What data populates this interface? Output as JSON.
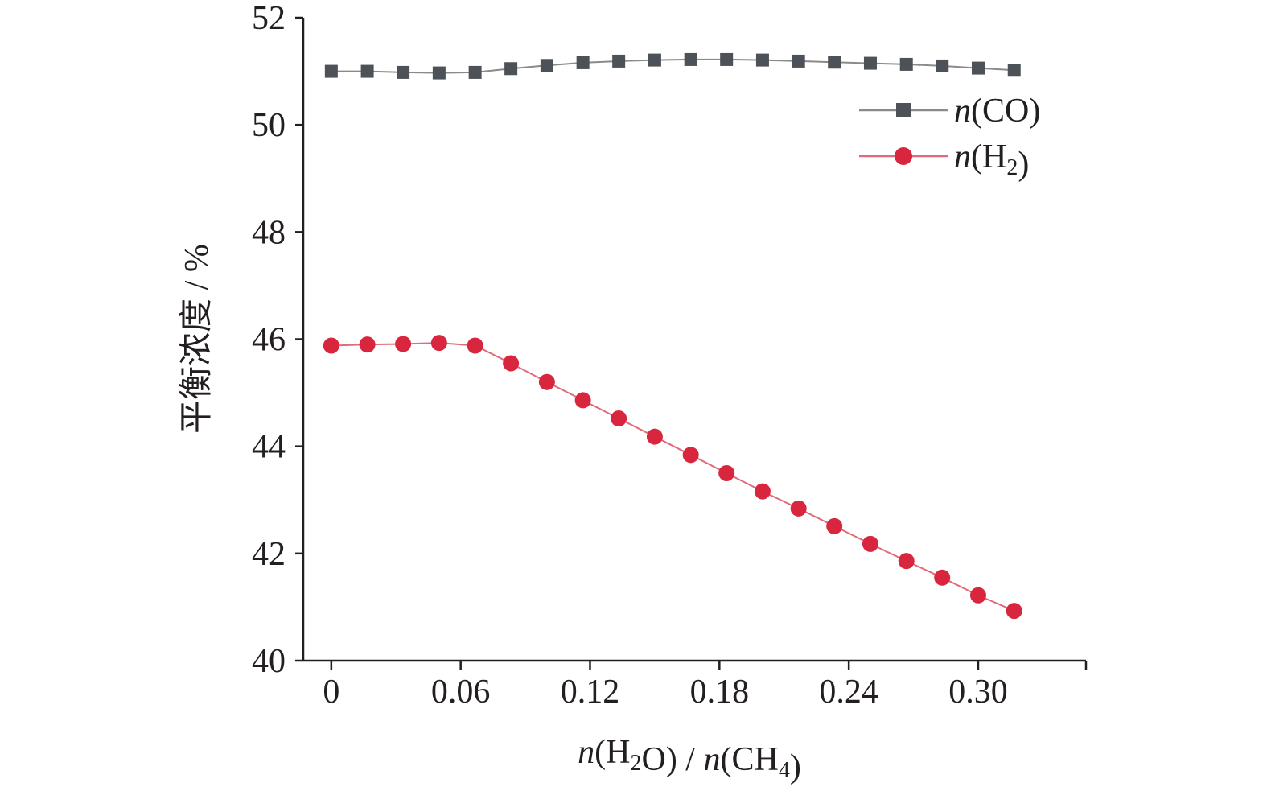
{
  "chart_data": {
    "type": "line",
    "title": "",
    "xlabel": "n(H2O) / n(CH4)",
    "ylabel": "平衡浓度 / %",
    "xlim": [
      -0.013,
      0.35
    ],
    "ylim": [
      40,
      52
    ],
    "x_ticks": [
      0,
      0.06,
      0.12,
      0.18,
      0.24,
      0.3
    ],
    "x_tick_labels": [
      "0",
      "0.06",
      "0.12",
      "0.18",
      "0.24",
      "0.30"
    ],
    "y_ticks": [
      40,
      42,
      44,
      46,
      48,
      50,
      52
    ],
    "y_tick_labels": [
      "40",
      "42",
      "44",
      "46",
      "48",
      "50",
      "52"
    ],
    "grid": false,
    "legend_position": "top-right",
    "x": [
      0,
      0.0167,
      0.0333,
      0.05,
      0.0667,
      0.0833,
      0.1,
      0.1167,
      0.1333,
      0.15,
      0.1667,
      0.1833,
      0.2,
      0.2167,
      0.2333,
      0.25,
      0.2667,
      0.2833,
      0.3,
      0.3167
    ],
    "series": [
      {
        "name": "n(CO)",
        "color": "#4d5258",
        "line_color": "#8a8a8a",
        "marker": "square",
        "values": [
          51.0,
          51.0,
          50.98,
          50.97,
          50.98,
          51.05,
          51.11,
          51.16,
          51.19,
          51.21,
          51.22,
          51.22,
          51.21,
          51.19,
          51.17,
          51.15,
          51.13,
          51.1,
          51.06,
          51.02
        ]
      },
      {
        "name": "n(H2)",
        "color": "#d7263d",
        "line_color": "#e06a78",
        "marker": "circle",
        "values": [
          45.88,
          45.9,
          45.91,
          45.93,
          45.88,
          45.55,
          45.2,
          44.86,
          44.52,
          44.18,
          43.84,
          43.5,
          43.16,
          42.84,
          42.51,
          42.18,
          41.86,
          41.55,
          41.22,
          40.93
        ]
      }
    ]
  }
}
